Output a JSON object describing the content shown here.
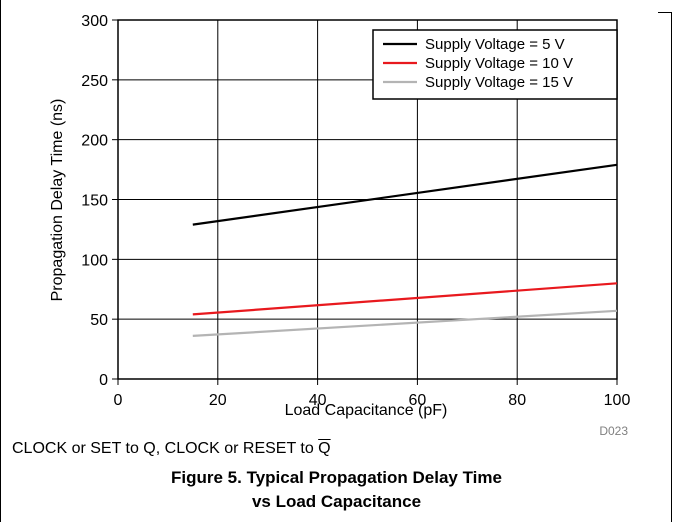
{
  "chart_data": {
    "type": "line",
    "xlabel": "Load Capacitance (pF)",
    "ylabel": "Propagation Delay Time (ns)",
    "xlim": [
      0,
      100
    ],
    "ylim": [
      0,
      300
    ],
    "xticks": [
      0,
      20,
      40,
      60,
      80,
      100
    ],
    "yticks": [
      0,
      50,
      100,
      150,
      200,
      250,
      300
    ],
    "grid": true,
    "legend_position": "top-right",
    "series": [
      {
        "name": "Supply Voltage = 5 V",
        "color": "#000000",
        "x": [
          15,
          100
        ],
        "y": [
          129,
          179
        ]
      },
      {
        "name": "Supply Voltage = 10 V",
        "color": "#e8191e",
        "x": [
          15,
          100
        ],
        "y": [
          54,
          80
        ]
      },
      {
        "name": "Supply Voltage = 15 V",
        "color": "#b4b4b4",
        "x": [
          15,
          100
        ],
        "y": [
          36,
          57
        ]
      }
    ],
    "code_label": "D023"
  },
  "caption": {
    "note_prefix": "CLOCK or SET to Q, CLOCK or RESET to ",
    "note_overbar": "Q",
    "title_line1": "Figure 5. Typical Propagation Delay Time",
    "title_line2": "vs Load Capacitance"
  }
}
